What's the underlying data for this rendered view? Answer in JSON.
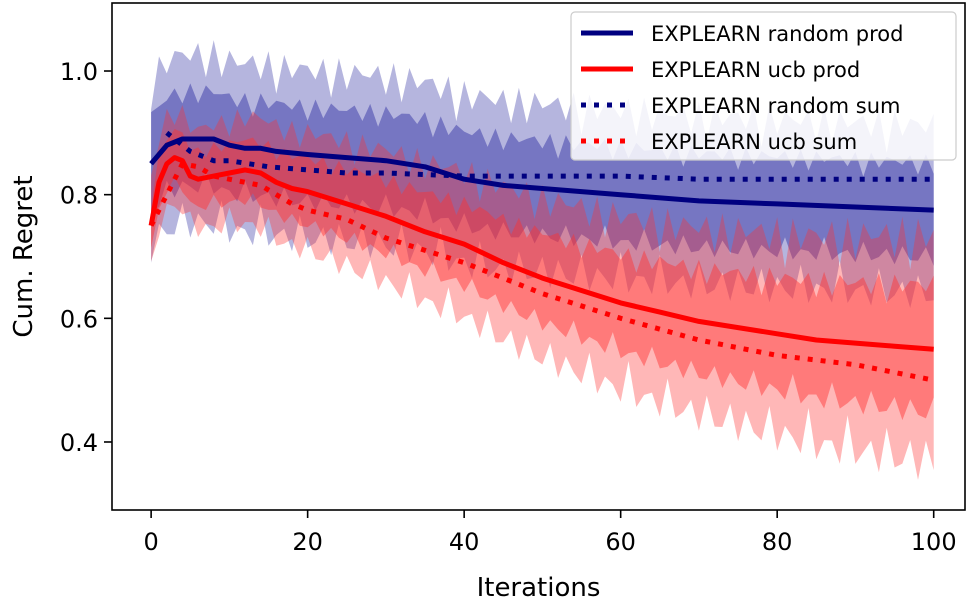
{
  "chart_data": {
    "type": "line",
    "title": "",
    "xlabel": "Iterations",
    "ylabel": "Cum. Regret",
    "xlim": [
      -5,
      104
    ],
    "ylim": [
      0.29,
      1.11
    ],
    "xticks": [
      0,
      20,
      40,
      60,
      80,
      100
    ],
    "yticks": [
      0.4,
      0.6,
      0.8,
      1.0
    ],
    "xtick_labels": [
      "0",
      "20",
      "40",
      "60",
      "80",
      "100"
    ],
    "ytick_labels": [
      "0.4",
      "0.6",
      "0.8",
      "1.0"
    ],
    "legend_position": "top-right",
    "series": [
      {
        "name": "EXPLEARN random prod",
        "color": "#000080",
        "style": "solid",
        "band_color": "#2a2ba0",
        "band_width": 0.1,
        "x": [
          0,
          2,
          4,
          6,
          8,
          10,
          12,
          14,
          16,
          20,
          25,
          30,
          35,
          40,
          45,
          50,
          55,
          60,
          70,
          80,
          90,
          100
        ],
        "y": [
          0.85,
          0.88,
          0.89,
          0.89,
          0.89,
          0.88,
          0.875,
          0.875,
          0.87,
          0.865,
          0.86,
          0.855,
          0.845,
          0.825,
          0.815,
          0.81,
          0.805,
          0.8,
          0.79,
          0.785,
          0.78,
          0.775
        ]
      },
      {
        "name": "EXPLEARN ucb prod",
        "color": "#ff0000",
        "style": "solid",
        "band_color": "#ff3030",
        "band_width": 0.09,
        "x": [
          0,
          1,
          2,
          3,
          4,
          5,
          6,
          8,
          10,
          12,
          14,
          16,
          18,
          20,
          25,
          30,
          35,
          40,
          45,
          50,
          55,
          60,
          65,
          70,
          75,
          80,
          85,
          90,
          95,
          100
        ],
        "y": [
          0.75,
          0.82,
          0.85,
          0.86,
          0.855,
          0.83,
          0.825,
          0.83,
          0.835,
          0.84,
          0.835,
          0.82,
          0.81,
          0.805,
          0.785,
          0.765,
          0.74,
          0.72,
          0.69,
          0.665,
          0.645,
          0.625,
          0.61,
          0.595,
          0.585,
          0.575,
          0.565,
          0.56,
          0.555,
          0.55
        ]
      },
      {
        "name": "EXPLEARN random sum",
        "color": "#000080",
        "style": "dotted",
        "x": [
          2,
          5,
          8,
          10,
          15,
          20,
          25,
          30,
          40,
          50,
          60,
          70,
          80,
          90,
          100
        ],
        "y": [
          0.9,
          0.87,
          0.855,
          0.855,
          0.845,
          0.84,
          0.835,
          0.835,
          0.83,
          0.83,
          0.83,
          0.825,
          0.825,
          0.825,
          0.825
        ]
      },
      {
        "name": "EXPLEARN ucb sum",
        "color": "#ff0000",
        "style": "dotted",
        "x": [
          0,
          2,
          4,
          6,
          8,
          10,
          14,
          18,
          20,
          25,
          30,
          40,
          50,
          60,
          70,
          80,
          90,
          100
        ],
        "y": [
          0.75,
          0.8,
          0.85,
          0.845,
          0.83,
          0.825,
          0.815,
          0.785,
          0.775,
          0.76,
          0.73,
          0.69,
          0.64,
          0.6,
          0.565,
          0.54,
          0.525,
          0.5
        ]
      }
    ]
  }
}
